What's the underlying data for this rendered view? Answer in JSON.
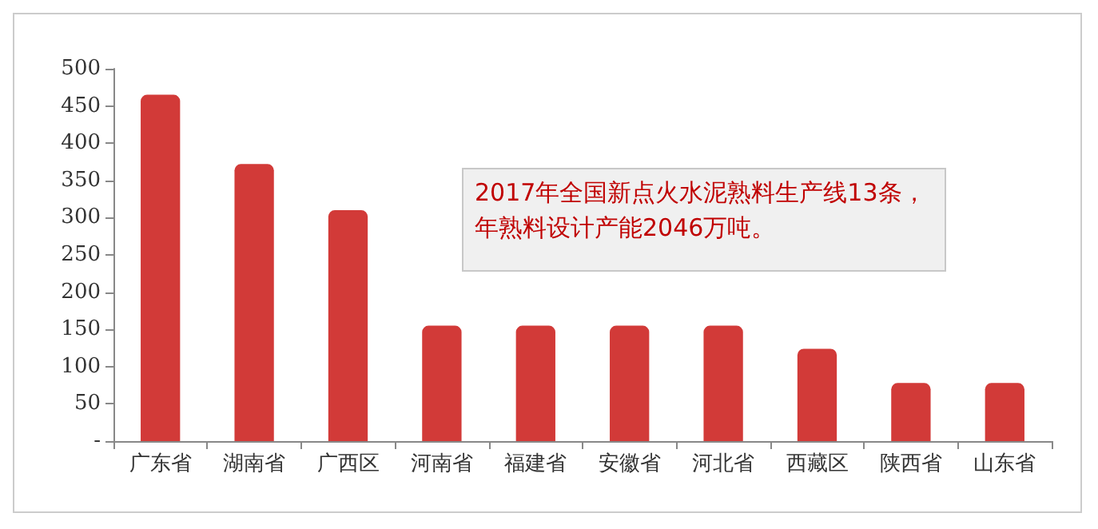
{
  "chart_data": {
    "type": "bar",
    "categories": [
      "广东省",
      "湖南省",
      "广西区",
      "河南省",
      "福建省",
      "安徽省",
      "河北省",
      "西藏区",
      "陕西省",
      "山东省"
    ],
    "values": [
      465,
      372,
      310,
      155,
      155,
      155,
      155,
      124,
      78,
      78
    ],
    "color": "#d23a38",
    "ylim": [
      0,
      500
    ],
    "yticks": [
      {
        "value": 0,
        "label": "-"
      },
      50,
      100,
      150,
      200,
      250,
      300,
      350,
      400,
      450,
      500
    ],
    "grid": false,
    "annotations": [
      "2017年全国新点火水泥熟料生产线13条，",
      "年熟料设计产能2046万吨。"
    ]
  }
}
